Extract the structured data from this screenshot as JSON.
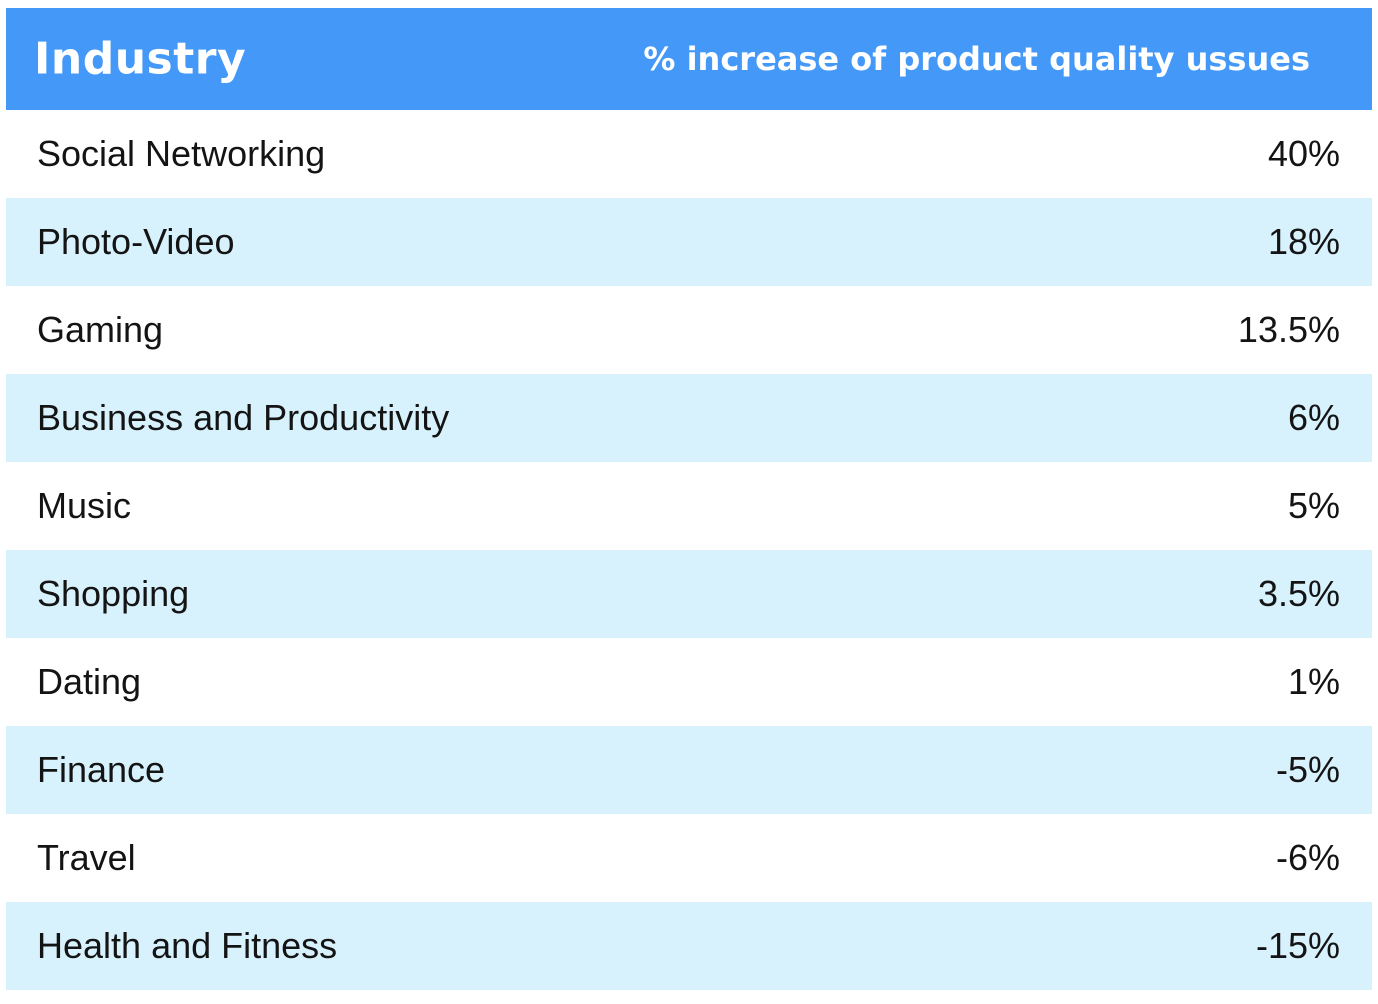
{
  "chart_data": {
    "type": "table",
    "columns": [
      "Industry",
      "% increase of product quality ussues"
    ],
    "rows": [
      {
        "industry": "Social Networking",
        "value_label": "40%",
        "value": 40
      },
      {
        "industry": "Photo-Video",
        "value_label": "18%",
        "value": 18
      },
      {
        "industry": "Gaming",
        "value_label": "13.5%",
        "value": 13.5
      },
      {
        "industry": "Business and Productivity",
        "value_label": "6%",
        "value": 6
      },
      {
        "industry": "Music",
        "value_label": "5%",
        "value": 5
      },
      {
        "industry": "Shopping",
        "value_label": "3.5%",
        "value": 3.5
      },
      {
        "industry": "Dating",
        "value_label": "1%",
        "value": 1
      },
      {
        "industry": "Finance",
        "value_label": "-5%",
        "value": -5
      },
      {
        "industry": "Travel",
        "value_label": "-6%",
        "value": -6
      },
      {
        "industry": "Health and Fitness",
        "value_label": "-15%",
        "value": -15
      }
    ]
  },
  "colors": {
    "header_bg": "#4499f8",
    "header_text": "#ffffff",
    "row_alt_bg": "#d7f2fd",
    "row_bg": "#ffffff",
    "text": "#141414"
  }
}
